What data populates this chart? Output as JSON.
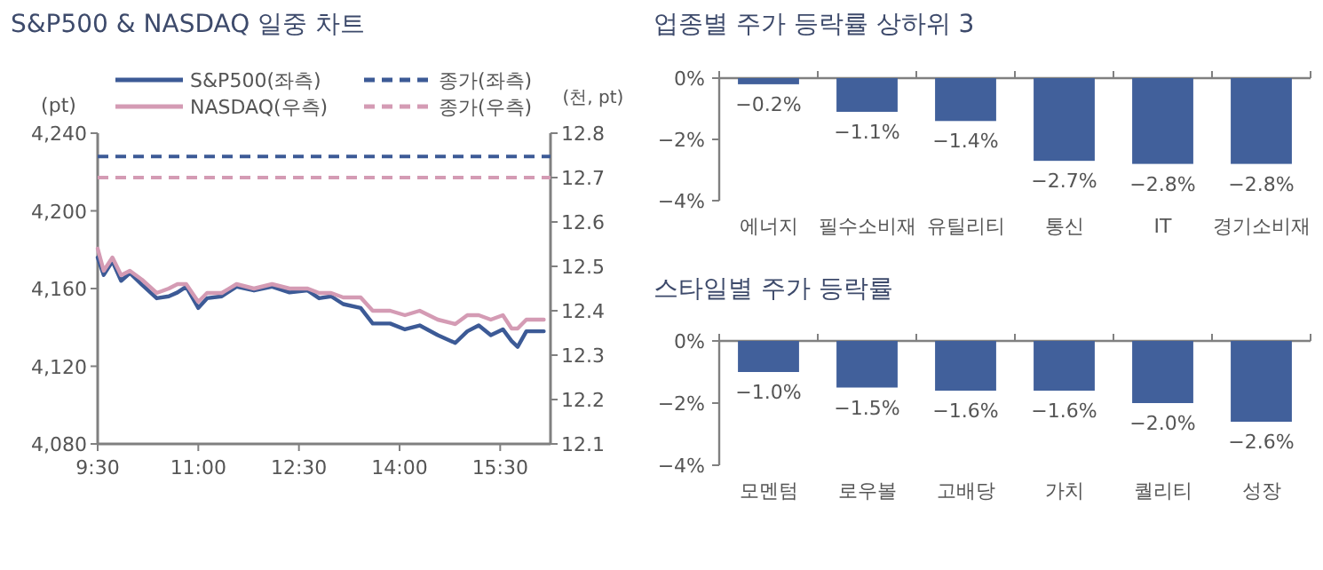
{
  "chart_data": [
    {
      "type": "line",
      "title": "S&P500 & NASDAQ 일중 차트",
      "ylabel": "(pt)",
      "y2label": "(천, pt)",
      "legend": "top",
      "xlim": [
        9.5,
        16.25
      ],
      "xticks": [
        {
          "value": 9.5,
          "label": "9:30"
        },
        {
          "value": 11,
          "label": "11:00"
        },
        {
          "value": 12.5,
          "label": "12:30"
        },
        {
          "value": 14,
          "label": "14:00"
        },
        {
          "value": 15.5,
          "label": "15:30"
        }
      ],
      "ylim": [
        4080,
        4240
      ],
      "yticks": [
        {
          "value": 4080,
          "label": "4,080"
        },
        {
          "value": 4120,
          "label": "4,120"
        },
        {
          "value": 4160,
          "label": "4,160"
        },
        {
          "value": 4200,
          "label": "4,200"
        },
        {
          "value": 4240,
          "label": "4,240"
        }
      ],
      "y2lim": [
        12.1,
        12.8
      ],
      "y2ticks": [
        12.1,
        12.2,
        12.3,
        12.4,
        12.5,
        12.6,
        12.7,
        12.8
      ],
      "x": [
        9.5,
        9.59,
        9.72,
        9.85,
        9.98,
        10.16,
        10.38,
        10.56,
        10.69,
        10.82,
        11.0,
        11.13,
        11.35,
        11.57,
        11.83,
        12.1,
        12.36,
        12.63,
        12.8,
        12.98,
        13.16,
        13.42,
        13.6,
        13.86,
        14.08,
        14.3,
        14.57,
        14.83,
        15.01,
        15.18,
        15.36,
        15.54,
        15.67,
        15.76,
        15.89,
        16.15
      ],
      "series": [
        {
          "name": "S&P500(좌측)",
          "color": "#3c5a96",
          "values": [
            4176,
            4167,
            4174,
            4164,
            4168,
            4162,
            4155,
            4156,
            4158,
            4161,
            4150,
            4155,
            4156,
            4161,
            4159,
            4161,
            4158,
            4159,
            4155,
            4156,
            4152,
            4150,
            4142,
            4142,
            4139,
            4141,
            4136,
            4132,
            4138,
            4141,
            4136,
            4139,
            4133,
            4130,
            4138,
            4138
          ]
        },
        {
          "name": "NASDAQ(우측)",
          "color": "#d49bb4",
          "axis": "y2",
          "values": [
            12.54,
            12.49,
            12.52,
            12.48,
            12.49,
            12.47,
            12.44,
            12.45,
            12.46,
            12.46,
            12.42,
            12.44,
            12.44,
            12.46,
            12.45,
            12.46,
            12.45,
            12.45,
            12.44,
            12.44,
            12.43,
            12.43,
            12.4,
            12.4,
            12.39,
            12.4,
            12.38,
            12.37,
            12.39,
            12.39,
            12.38,
            12.39,
            12.36,
            12.36,
            12.38,
            12.38
          ]
        }
      ],
      "ref_lines": [
        {
          "axis": "y",
          "value": 4228,
          "label": "종가(좌측)",
          "color": "#3c5a96",
          "line_style": "dashed"
        },
        {
          "axis": "y2",
          "value": 12.7,
          "label": "종가(우측)",
          "color": "#d49bb4",
          "line_style": "dashed"
        }
      ]
    },
    {
      "type": "bar",
      "title": "업종별 주가 등락률 상하위 3",
      "categories": [
        "에너지",
        "필수소비재",
        "유틸리티",
        "통신",
        "IT",
        "경기소비재"
      ],
      "ylim": [
        -4,
        0
      ],
      "yticks": [
        {
          "value": -4,
          "label": "−4%"
        },
        {
          "value": -2,
          "label": "−2%"
        },
        {
          "value": 0,
          "label": "0%"
        }
      ],
      "series": [
        {
          "color": "#41609b",
          "values": [
            -0.2,
            -1.1,
            -1.4,
            -2.7,
            -2.8,
            -2.8
          ],
          "value_labels": [
            "−0.2%",
            "−1.1%",
            "−1.4%",
            "−2.7%",
            "−2.8%",
            "−2.8%"
          ]
        }
      ]
    },
    {
      "type": "bar",
      "title": "스타일별 주가 등락률",
      "categories": [
        "모멘텀",
        "로우볼",
        "고배당",
        "가치",
        "퀄리티",
        "성장"
      ],
      "ylim": [
        -4,
        0
      ],
      "yticks": [
        {
          "value": -4,
          "label": "−4%"
        },
        {
          "value": -2,
          "label": "−2%"
        },
        {
          "value": 0,
          "label": "0%"
        }
      ],
      "series": [
        {
          "color": "#41609b",
          "values": [
            -1.0,
            -1.5,
            -1.6,
            -1.6,
            -2.0,
            -2.6
          ],
          "value_labels": [
            "−1.0%",
            "−1.5%",
            "−1.6%",
            "−1.6%",
            "−2.0%",
            "−2.6%"
          ]
        }
      ]
    }
  ]
}
